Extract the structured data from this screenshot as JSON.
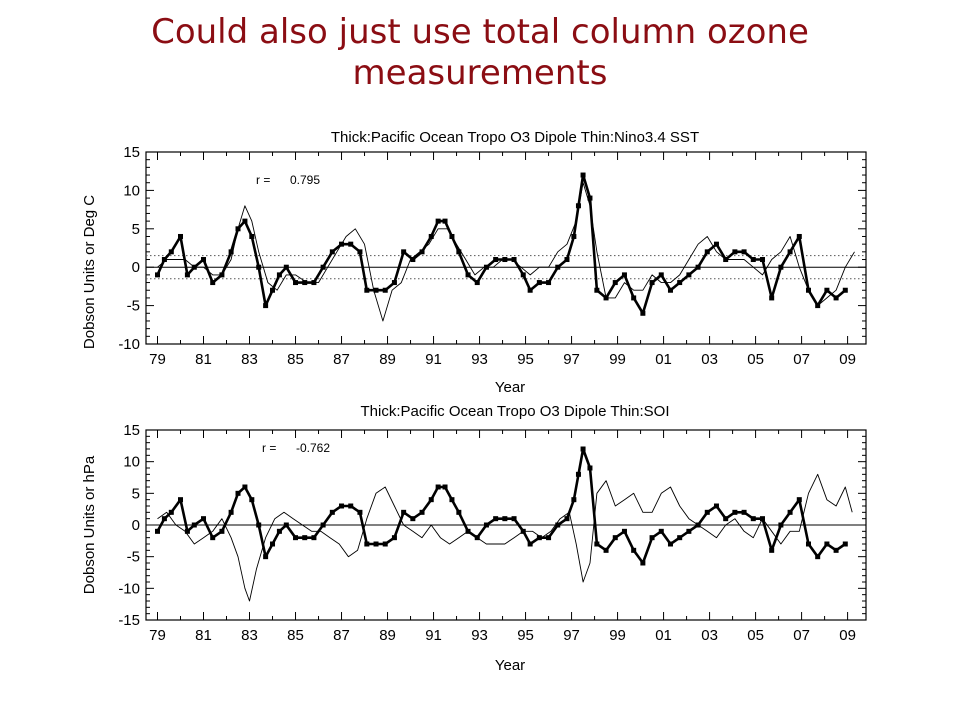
{
  "slide": {
    "title_line1": "Could also just use total column ozone",
    "title_line2": "measurements"
  },
  "colors": {
    "title": "#8b0d13",
    "ink": "#000000",
    "dotted_ref": "#555555"
  },
  "chart_data": [
    {
      "type": "line",
      "title": "Thick:Pacific Ocean Tropo O3 Dipole     Thin:Nino3.4 SST",
      "annotation_label": "r =",
      "annotation_value": "0.795",
      "xlabel": "Year",
      "ylabel": "Dobson Units or Deg C",
      "xlim": [
        1978.5,
        2009.8
      ],
      "ylim": [
        -10,
        15
      ],
      "xticks": [
        "79",
        "81",
        "83",
        "85",
        "87",
        "89",
        "91",
        "93",
        "95",
        "97",
        "99",
        "01",
        "03",
        "05",
        "07",
        "09"
      ],
      "yticks": [
        -10,
        -5,
        0,
        5,
        10,
        15
      ],
      "reference_lines": [
        {
          "y": 0,
          "style": "solid"
        },
        {
          "y": 1.5,
          "style": "dotted"
        },
        {
          "y": -1.5,
          "style": "dotted"
        }
      ],
      "series": [
        {
          "style": "thick-with-square-markers",
          "x": [
            1979.0,
            1979.3,
            1979.6,
            1980.0,
            1980.3,
            1980.6,
            1981.0,
            1981.4,
            1981.8,
            1982.2,
            1982.5,
            1982.8,
            1983.1,
            1983.4,
            1983.7,
            1984.0,
            1984.3,
            1984.6,
            1985.0,
            1985.4,
            1985.8,
            1986.2,
            1986.6,
            1987.0,
            1987.4,
            1987.8,
            1988.1,
            1988.5,
            1988.9,
            1989.3,
            1989.7,
            1990.1,
            1990.5,
            1990.9,
            1991.2,
            1991.5,
            1991.8,
            1992.1,
            1992.5,
            1992.9,
            1993.3,
            1993.7,
            1994.1,
            1994.5,
            1994.9,
            1995.2,
            1995.6,
            1996.0,
            1996.4,
            1996.8,
            1997.1,
            1997.3,
            1997.5,
            1997.8,
            1998.1,
            1998.5,
            1998.9,
            1999.3,
            1999.7,
            2000.1,
            2000.5,
            2000.9,
            2001.3,
            2001.7,
            2002.1,
            2002.5,
            2002.9,
            2003.3,
            2003.7,
            2004.1,
            2004.5,
            2004.9,
            2005.3,
            2005.7,
            2006.1,
            2006.5,
            2006.9,
            2007.3,
            2007.7,
            2008.1,
            2008.5,
            2008.9
          ],
          "values": [
            -1,
            1,
            2,
            4,
            -1,
            0,
            1,
            -2,
            -1,
            2,
            5,
            6,
            4,
            0,
            -5,
            -3,
            -1,
            0,
            -2,
            -2,
            -2,
            0,
            2,
            3,
            3,
            2,
            -3,
            -3,
            -3,
            -2,
            2,
            1,
            2,
            4,
            6,
            6,
            4,
            2,
            -1,
            -2,
            0,
            1,
            1,
            1,
            -1,
            -3,
            -2,
            -2,
            0,
            1,
            4,
            8,
            12,
            9,
            -3,
            -4,
            -2,
            -1,
            -4,
            -6,
            -2,
            -1,
            -3,
            -2,
            -1,
            0,
            2,
            3,
            1,
            2,
            2,
            1,
            1,
            -4,
            0,
            2,
            4,
            -3,
            -5,
            -3,
            -4,
            -3
          ]
        },
        {
          "style": "thin",
          "x": [
            1979.0,
            1979.4,
            1979.8,
            1980.2,
            1980.6,
            1981.0,
            1981.4,
            1981.8,
            1982.2,
            1982.5,
            1982.8,
            1983.1,
            1983.4,
            1983.8,
            1984.2,
            1984.6,
            1985.0,
            1985.5,
            1986.0,
            1986.4,
            1986.8,
            1987.2,
            1987.6,
            1988.0,
            1988.4,
            1988.8,
            1989.2,
            1989.6,
            1990.0,
            1990.4,
            1990.8,
            1991.2,
            1991.6,
            1992.0,
            1992.4,
            1992.8,
            1993.2,
            1993.6,
            1994.0,
            1994.4,
            1994.8,
            1995.2,
            1995.6,
            1996.0,
            1996.4,
            1996.8,
            1997.2,
            1997.5,
            1997.8,
            1998.1,
            1998.5,
            1998.9,
            1999.3,
            1999.7,
            2000.1,
            2000.5,
            2000.9,
            2001.3,
            2001.7,
            2002.1,
            2002.5,
            2002.9,
            2003.3,
            2003.7,
            2004.1,
            2004.5,
            2004.9,
            2005.3,
            2005.7,
            2006.1,
            2006.5,
            2006.9,
            2007.3,
            2007.7,
            2008.1,
            2008.5,
            2008.9,
            2009.3
          ],
          "values": [
            0,
            1,
            1,
            1,
            0,
            0,
            -1,
            -1,
            1,
            5,
            8,
            6,
            2,
            -2,
            -3,
            -1,
            -1,
            -2,
            -2,
            0,
            2,
            4,
            5,
            3,
            -3,
            -7,
            -3,
            -2,
            1,
            2,
            3,
            5,
            5,
            3,
            1,
            -1,
            0,
            0,
            1,
            1,
            0,
            -1,
            0,
            0,
            2,
            3,
            6,
            11,
            8,
            2,
            -4,
            -4,
            -2,
            -3,
            -3,
            -1,
            -2,
            -2,
            -1,
            1,
            3,
            4,
            2,
            1,
            1,
            1,
            0,
            -1,
            1,
            2,
            4,
            0,
            -3,
            -5,
            -4,
            -3,
            0,
            2
          ]
        }
      ]
    },
    {
      "type": "line",
      "title": "Thick:Pacific Ocean Tropo O3 Dipole       Thin:SOI",
      "annotation_label": "r =",
      "annotation_value": "-0.762",
      "xlabel": "Year",
      "ylabel": "Dobson Units or hPa",
      "xlim": [
        1978.5,
        2009.8
      ],
      "ylim": [
        -15,
        15
      ],
      "xticks": [
        "79",
        "81",
        "83",
        "85",
        "87",
        "89",
        "91",
        "93",
        "95",
        "97",
        "99",
        "01",
        "03",
        "05",
        "07",
        "09"
      ],
      "yticks": [
        -15,
        -10,
        -5,
        0,
        5,
        10,
        15
      ],
      "reference_lines": [
        {
          "y": 0,
          "style": "solid"
        }
      ],
      "series": [
        {
          "style": "thick-with-square-markers",
          "x": [
            1979.0,
            1979.3,
            1979.6,
            1980.0,
            1980.3,
            1980.6,
            1981.0,
            1981.4,
            1981.8,
            1982.2,
            1982.5,
            1982.8,
            1983.1,
            1983.4,
            1983.7,
            1984.0,
            1984.3,
            1984.6,
            1985.0,
            1985.4,
            1985.8,
            1986.2,
            1986.6,
            1987.0,
            1987.4,
            1987.8,
            1988.1,
            1988.5,
            1988.9,
            1989.3,
            1989.7,
            1990.1,
            1990.5,
            1990.9,
            1991.2,
            1991.5,
            1991.8,
            1992.1,
            1992.5,
            1992.9,
            1993.3,
            1993.7,
            1994.1,
            1994.5,
            1994.9,
            1995.2,
            1995.6,
            1996.0,
            1996.4,
            1996.8,
            1997.1,
            1997.3,
            1997.5,
            1997.8,
            1998.1,
            1998.5,
            1998.9,
            1999.3,
            1999.7,
            2000.1,
            2000.5,
            2000.9,
            2001.3,
            2001.7,
            2002.1,
            2002.5,
            2002.9,
            2003.3,
            2003.7,
            2004.1,
            2004.5,
            2004.9,
            2005.3,
            2005.7,
            2006.1,
            2006.5,
            2006.9,
            2007.3,
            2007.7,
            2008.1,
            2008.5,
            2008.9
          ],
          "values": [
            -1,
            1,
            2,
            4,
            -1,
            0,
            1,
            -2,
            -1,
            2,
            5,
            6,
            4,
            0,
            -5,
            -3,
            -1,
            0,
            -2,
            -2,
            -2,
            0,
            2,
            3,
            3,
            2,
            -3,
            -3,
            -3,
            -2,
            2,
            1,
            2,
            4,
            6,
            6,
            4,
            2,
            -1,
            -2,
            0,
            1,
            1,
            1,
            -1,
            -3,
            -2,
            -2,
            0,
            1,
            4,
            8,
            12,
            9,
            -3,
            -4,
            -2,
            -1,
            -4,
            -6,
            -2,
            -1,
            -3,
            -2,
            -1,
            0,
            2,
            3,
            1,
            2,
            2,
            1,
            1,
            -4,
            0,
            2,
            4,
            -3,
            -5,
            -3,
            -4,
            -3
          ]
        },
        {
          "style": "thin",
          "x": [
            1979.0,
            1979.4,
            1979.8,
            1980.2,
            1980.6,
            1981.0,
            1981.4,
            1981.8,
            1982.2,
            1982.5,
            1982.8,
            1983.0,
            1983.3,
            1983.7,
            1984.1,
            1984.5,
            1984.9,
            1985.3,
            1985.7,
            1986.1,
            1986.5,
            1986.9,
            1987.3,
            1987.7,
            1988.1,
            1988.5,
            1988.9,
            1989.3,
            1989.7,
            1990.1,
            1990.5,
            1990.9,
            1991.3,
            1991.7,
            1992.1,
            1992.5,
            1992.9,
            1993.3,
            1993.7,
            1994.1,
            1994.5,
            1994.9,
            1995.3,
            1995.7,
            1996.1,
            1996.5,
            1996.9,
            1997.2,
            1997.5,
            1997.8,
            1998.1,
            1998.5,
            1998.9,
            1999.3,
            1999.7,
            2000.1,
            2000.5,
            2000.9,
            2001.3,
            2001.7,
            2002.1,
            2002.5,
            2002.9,
            2003.3,
            2003.7,
            2004.1,
            2004.5,
            2004.9,
            2005.3,
            2005.7,
            2006.1,
            2006.5,
            2006.9,
            2007.3,
            2007.7,
            2008.1,
            2008.5,
            2008.9,
            2009.2
          ],
          "values": [
            1,
            2,
            0,
            -1,
            -3,
            -2,
            -1,
            1,
            -2,
            -5,
            -10,
            -12,
            -7,
            -2,
            1,
            2,
            1,
            0,
            -1,
            -1,
            -2,
            -3,
            -5,
            -4,
            1,
            5,
            6,
            3,
            0,
            -1,
            -2,
            0,
            -2,
            -3,
            -2,
            -1,
            -2,
            -3,
            -3,
            -3,
            -2,
            -1,
            -1,
            -2,
            -1,
            1,
            2,
            -3,
            -9,
            -6,
            5,
            7,
            3,
            4,
            5,
            2,
            2,
            5,
            6,
            3,
            1,
            0,
            -1,
            -2,
            0,
            1,
            -1,
            -2,
            1,
            -1,
            -3,
            -1,
            -1,
            5,
            8,
            4,
            3,
            6,
            2
          ]
        }
      ]
    }
  ]
}
